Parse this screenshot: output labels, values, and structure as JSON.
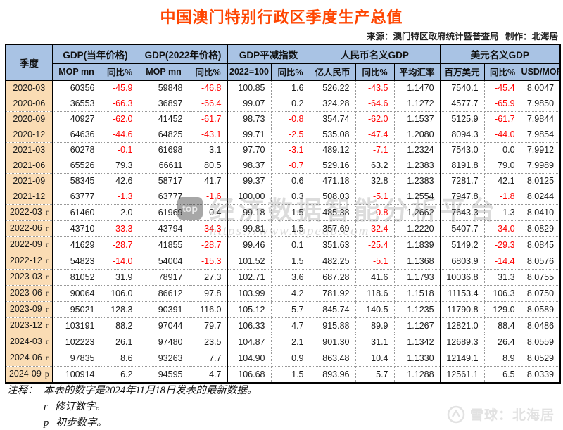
{
  "title": "中国澳门特别行政区季度生产总值",
  "source_line": {
    "source": "来源：澳门特区政府统计暨普查局",
    "maker": "制作：北海居"
  },
  "colors": {
    "title": "#ff4500",
    "header_bg": "#a9c3e4",
    "quarter_bg": "#fadcb4",
    "negative": "#ff0000",
    "border": "#000000",
    "dotted": "#999999"
  },
  "table": {
    "quarter_header": "季度",
    "groups": [
      {
        "label": "GDP(当年价格)",
        "cols": [
          "MOP mn",
          "同比%"
        ]
      },
      {
        "label": "GDP(2022年价格)",
        "cols": [
          "MOP mn",
          "同比%"
        ]
      },
      {
        "label": "GDP平减指数",
        "cols": [
          "2022=100",
          "同比%"
        ]
      },
      {
        "label": "人民币名义GDP",
        "cols": [
          "亿人民币",
          "同比%",
          "平均汇率"
        ]
      },
      {
        "label": "美元名义GDP",
        "cols": [
          "百万美元",
          "同比%",
          "USD/MOP"
        ]
      }
    ]
  },
  "chart_data": {
    "type": "table",
    "title": "中国澳门特别行政区季度生产总值",
    "columns": [
      "季度",
      "GDP(当年价格) MOP mn",
      "GDP(当年价格) 同比%",
      "GDP(2022年价格) MOP mn",
      "GDP(2022年价格) 同比%",
      "GDP平减指数 2022=100",
      "GDP平减指数 同比%",
      "人民币名义GDP 亿人民币",
      "人民币名义GDP 同比%",
      "人民币名义GDP 平均汇率",
      "美元名义GDP 百万美元",
      "美元名义GDP 同比%",
      "美元名义GDP USD/MOP"
    ],
    "rows": [
      {
        "quarter": "2020-03",
        "flag": "",
        "values": [
          "60356",
          "-45.9",
          "59848",
          "-46.8",
          "100.85",
          "1.6",
          "526.22",
          "-43.5",
          "1.1470",
          "7540.1",
          "-45.4",
          "8.0047"
        ]
      },
      {
        "quarter": "2020-06",
        "flag": "",
        "values": [
          "36553",
          "-66.3",
          "36897",
          "-66.4",
          "99.07",
          "0.2",
          "324.28",
          "-64.6",
          "1.1272",
          "4577.7",
          "-65.9",
          "7.9850"
        ]
      },
      {
        "quarter": "2020-09",
        "flag": "",
        "values": [
          "40927",
          "-62.0",
          "41452",
          "-61.7",
          "98.73",
          "-0.8",
          "354.74",
          "-62.0",
          "1.1537",
          "5125.9",
          "-61.7",
          "7.9844"
        ]
      },
      {
        "quarter": "2020-12",
        "flag": "",
        "values": [
          "64636",
          "-44.6",
          "64825",
          "-43.1",
          "99.71",
          "-2.5",
          "535.08",
          "-47.4",
          "1.2080",
          "8094.3",
          "-44.0",
          "7.9854"
        ]
      },
      {
        "quarter": "2021-03",
        "flag": "",
        "values": [
          "60278",
          "-0.1",
          "61698",
          "3.1",
          "97.70",
          "-3.1",
          "489.12",
          "-7.1",
          "1.2324",
          "7543.0",
          "0.0",
          "7.9912"
        ]
      },
      {
        "quarter": "2021-06",
        "flag": "",
        "values": [
          "65526",
          "79.3",
          "66611",
          "80.5",
          "98.37",
          "-0.7",
          "529.16",
          "63.2",
          "1.2383",
          "8191.8",
          "79.0",
          "7.9989"
        ]
      },
      {
        "quarter": "2021-09",
        "flag": "",
        "values": [
          "58345",
          "42.6",
          "58717",
          "41.7",
          "99.37",
          "0.6",
          "471.18",
          "32.8",
          "1.2383",
          "7281.7",
          "42.1",
          "8.0125"
        ]
      },
      {
        "quarter": "2021-12",
        "flag": "",
        "values": [
          "63777",
          "-1.3",
          "63777",
          "-1.6",
          "100.00",
          "0.3",
          "508.03",
          "-5.1",
          "1.2554",
          "7947.8",
          "-1.8",
          "8.0244"
        ]
      },
      {
        "quarter": "2022-03",
        "flag": "r",
        "values": [
          "61460",
          "2.0",
          "61969",
          "0.4",
          "99.18",
          "1.5",
          "485.38",
          "-0.8",
          "1.2662",
          "7643.3",
          "1.3",
          "8.0410"
        ]
      },
      {
        "quarter": "2022-06",
        "flag": "r",
        "values": [
          "43710",
          "-33.3",
          "43794",
          "-34.3",
          "99.81",
          "1.5",
          "357.69",
          "-32.4",
          "1.2220",
          "5407.7",
          "-34.0",
          "8.0829"
        ]
      },
      {
        "quarter": "2022-09",
        "flag": "r",
        "values": [
          "41629",
          "-28.7",
          "41855",
          "-28.7",
          "99.46",
          "0.1",
          "351.63",
          "-25.4",
          "1.1839",
          "5149.2",
          "-29.3",
          "8.0845"
        ]
      },
      {
        "quarter": "2022-12",
        "flag": "r",
        "values": [
          "54823",
          "-14.0",
          "54004",
          "-15.3",
          "101.52",
          "1.5",
          "482.25",
          "-5.1",
          "1.1368",
          "6803.9",
          "-14.4",
          "8.0576"
        ]
      },
      {
        "quarter": "2023-03",
        "flag": "r",
        "values": [
          "81052",
          "31.9",
          "78917",
          "27.3",
          "102.71",
          "3.6",
          "687.28",
          "41.6",
          "1.1793",
          "10036.8",
          "31.3",
          "8.0755"
        ]
      },
      {
        "quarter": "2023-06",
        "flag": "r",
        "values": [
          "90064",
          "106.0",
          "86612",
          "97.8",
          "103.99",
          "4.2",
          "781.92",
          "118.6",
          "1.1518",
          "11153.4",
          "106.3",
          "8.0750"
        ]
      },
      {
        "quarter": "2023-09",
        "flag": "r",
        "values": [
          "95021",
          "128.3",
          "90391",
          "116.0",
          "105.12",
          "5.7",
          "845.74",
          "140.5",
          "1.1235",
          "11790.8",
          "129.0",
          "8.0589"
        ]
      },
      {
        "quarter": "2023-12",
        "flag": "r",
        "values": [
          "103191",
          "88.2",
          "97044",
          "79.7",
          "106.33",
          "4.7",
          "915.88",
          "89.9",
          "1.1267",
          "12821.0",
          "88.4",
          "8.0486"
        ]
      },
      {
        "quarter": "2024-03",
        "flag": "r",
        "values": [
          "102223",
          "26.1",
          "97480",
          "23.5",
          "104.87",
          "2.1",
          "901.30",
          "31.1",
          "1.1342",
          "12689.3",
          "26.4",
          "8.0559"
        ]
      },
      {
        "quarter": "2024-06",
        "flag": "r",
        "values": [
          "97835",
          "8.6",
          "93263",
          "7.7",
          "104.90",
          "0.9",
          "863.48",
          "10.4",
          "1.1330",
          "12149.1",
          "8.9",
          "8.0529"
        ]
      },
      {
        "quarter": "2024-09",
        "flag": "p",
        "values": [
          "100914",
          "6.2",
          "94595",
          "4.7",
          "106.68",
          "1.5",
          "893.96",
          "5.7",
          "1.1288",
          "12561.1",
          "6.5",
          "8.0339"
        ]
      }
    ]
  },
  "notes": {
    "label": "注释：",
    "line1": "本表的数字是2024年11月18日发表的最新数据。",
    "r_flag": "r",
    "r_text": "修订数字。",
    "p_flag": "p",
    "p_text": "初步数字。"
  },
  "watermarks": {
    "center": {
      "icon_label": "top",
      "text": "经济数据智能分析平台",
      "url": "https://www.topedb.com"
    },
    "bottom_right": {
      "text": "雪球：北海居"
    }
  }
}
